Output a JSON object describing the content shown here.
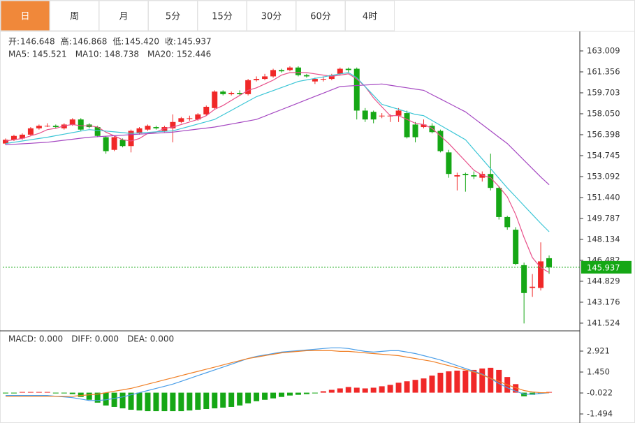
{
  "tabs": [
    "日",
    "周",
    "月",
    "5分",
    "15分",
    "30分",
    "60分",
    "4时"
  ],
  "chart_data": [
    {
      "type": "candlestick",
      "ylim": [
        140.97,
        164.55
      ],
      "yticks": [
        163.009,
        161.356,
        159.703,
        {
          "value": 158.05,
          "label": "158.050"
        },
        156.398,
        154.745,
        153.092,
        {
          "value": 151.44,
          "label": "151.440"
        },
        149.787,
        148.134,
        146.482,
        144.829,
        143.176,
        141.524
      ],
      "up_color": "#f02828",
      "down_color": "#15a715",
      "open": [
        155.7,
        156.0,
        156.1,
        156.4,
        156.9,
        157.1,
        157.1,
        156.9,
        157.2,
        157.6,
        157.2,
        157.0,
        156.2,
        155.2,
        156.0,
        155.5,
        156.5,
        156.8,
        157.0,
        156.7,
        156.9,
        157.4,
        157.7,
        157.6,
        158.0,
        158.5,
        159.8,
        159.6,
        159.7,
        159.6,
        160.7,
        160.8,
        161.0,
        161.5,
        161.5,
        161.7,
        161.1,
        160.6,
        160.8,
        160.8,
        161.2,
        161.6,
        161.6,
        158.3,
        158.2,
        157.9,
        157.9,
        157.9,
        158.1,
        157.2,
        157.0,
        157.1,
        156.7,
        155.0,
        153.1,
        153.3,
        153.2,
        153.0,
        153.3,
        152.2,
        149.9,
        148.9,
        146.1,
        144.3,
        144.3,
        146.648
      ],
      "high": [
        156.1,
        156.4,
        156.5,
        157.0,
        157.2,
        157.3,
        157.2,
        157.3,
        157.7,
        157.7,
        157.3,
        157.1,
        156.3,
        156.3,
        156.1,
        156.8,
        157.0,
        157.2,
        157.1,
        157.1,
        158.0,
        157.8,
        157.9,
        158.1,
        158.7,
        159.9,
        159.9,
        159.8,
        159.9,
        160.8,
        161.0,
        161.2,
        161.6,
        161.6,
        161.8,
        161.8,
        161.2,
        160.9,
        161.0,
        161.2,
        161.7,
        161.7,
        161.7,
        158.5,
        158.3,
        158.1,
        158.0,
        158.5,
        158.3,
        157.4,
        157.6,
        157.3,
        156.8,
        155.2,
        153.4,
        153.4,
        153.5,
        153.5,
        154.9,
        152.3,
        150.0,
        149.1,
        146.3,
        145.4,
        147.9,
        146.868
      ],
      "low": [
        155.6,
        155.9,
        156.0,
        156.3,
        156.8,
        157.0,
        156.9,
        156.8,
        157.1,
        156.7,
        156.9,
        156.2,
        154.9,
        155.1,
        155.4,
        155.0,
        156.4,
        156.7,
        156.8,
        156.6,
        155.8,
        157.3,
        157.5,
        157.5,
        157.9,
        158.4,
        159.5,
        159.5,
        159.5,
        159.5,
        160.6,
        160.7,
        160.9,
        161.3,
        161.4,
        161.0,
        160.9,
        160.4,
        160.6,
        160.7,
        161.1,
        161.3,
        157.6,
        157.4,
        157.3,
        157.7,
        157.4,
        157.4,
        156.1,
        155.8,
        156.9,
        156.5,
        155.0,
        153.0,
        152.0,
        151.9,
        152.9,
        152.7,
        152.0,
        149.7,
        148.9,
        146.1,
        141.5,
        143.6,
        144.1,
        145.42
      ],
      "close": [
        156.0,
        156.3,
        156.4,
        156.9,
        157.1,
        157.1,
        157.0,
        157.2,
        157.6,
        156.8,
        157.0,
        156.3,
        155.1,
        156.2,
        155.5,
        156.7,
        156.9,
        157.1,
        156.9,
        157.0,
        157.4,
        157.7,
        157.7,
        158.0,
        158.6,
        159.8,
        159.6,
        159.7,
        159.6,
        160.7,
        160.8,
        161.0,
        161.5,
        161.4,
        161.7,
        161.1,
        161.0,
        160.8,
        160.8,
        161.1,
        161.6,
        161.5,
        158.3,
        157.6,
        157.6,
        157.9,
        157.9,
        158.3,
        156.2,
        156.2,
        157.2,
        156.6,
        155.1,
        153.3,
        153.2,
        153.2,
        153.1,
        153.3,
        152.2,
        149.9,
        149.1,
        146.2,
        143.9,
        144.4,
        146.4,
        145.937
      ],
      "ohlc_labels": [
        {
          "label": "开:",
          "value": "146.648"
        },
        {
          "label": "高:",
          "value": "146.868"
        },
        {
          "label": "低:",
          "value": "145.420"
        },
        {
          "label": "收:",
          "value": "145.937"
        }
      ],
      "ma": [
        {
          "label": "MA5: 145.521",
          "color": "#e8508a",
          "values": [
            155.9,
            156.0,
            156.1,
            156.3,
            156.5,
            156.8,
            156.9,
            157.1,
            157.2,
            157.1,
            157.1,
            157.0,
            156.6,
            156.3,
            156.0,
            155.9,
            156.1,
            156.5,
            156.6,
            156.9,
            157.0,
            157.2,
            157.4,
            157.6,
            157.9,
            158.4,
            158.7,
            159.1,
            159.5,
            159.9,
            160.1,
            160.4,
            160.7,
            161.1,
            161.3,
            161.3,
            161.3,
            161.2,
            161.1,
            161.0,
            161.1,
            161.2,
            160.8,
            160.2,
            159.3,
            158.6,
            157.9,
            157.9,
            157.6,
            157.3,
            157.2,
            156.9,
            156.3,
            155.7,
            155.0,
            154.3,
            153.6,
            153.2,
            153.0,
            152.3,
            151.5,
            150.1,
            148.3,
            146.7,
            145.9,
            145.521
          ]
        },
        {
          "label": "MA10: 148.738",
          "color": "#3cc6d6",
          "values": [
            155.7,
            155.8,
            155.9,
            156.0,
            156.1,
            156.2,
            156.32,
            156.44,
            156.56,
            156.68,
            156.8,
            156.74,
            156.68,
            156.62,
            156.56,
            156.5,
            156.54,
            156.58,
            156.62,
            156.66,
            156.7,
            156.88,
            157.06,
            157.24,
            157.42,
            157.6,
            157.96,
            158.32,
            158.68,
            159.04,
            159.4,
            159.64,
            159.88,
            160.12,
            160.36,
            160.6,
            160.72,
            160.84,
            160.96,
            161.08,
            161.2,
            161.3,
            160.9,
            160.2,
            159.5,
            158.8,
            158.6,
            158.4,
            158.2,
            158.0,
            157.9,
            157.52,
            157.14,
            156.76,
            156.38,
            156.0,
            155.24,
            154.48,
            153.72,
            152.96,
            152.2,
            151.5,
            150.8,
            150.1,
            149.4,
            148.738
          ]
        },
        {
          "label": "MA20: 152.446",
          "color": "#a548c2",
          "values": [
            155.6,
            155.64,
            155.68,
            155.72,
            155.76,
            155.8,
            155.88,
            155.96,
            156.04,
            156.12,
            156.2,
            156.24,
            156.28,
            156.32,
            156.36,
            156.4,
            156.44,
            156.48,
            156.52,
            156.56,
            156.6,
            156.68,
            156.76,
            156.84,
            156.92,
            157.0,
            157.12,
            157.24,
            157.36,
            157.48,
            157.6,
            157.86,
            158.12,
            158.38,
            158.64,
            158.9,
            159.16,
            159.42,
            159.68,
            159.94,
            160.2,
            160.24,
            160.28,
            160.32,
            160.36,
            160.4,
            160.3,
            160.2,
            160.1,
            160.0,
            159.9,
            159.56,
            159.22,
            158.88,
            158.54,
            158.2,
            157.7,
            157.2,
            156.7,
            156.2,
            155.7,
            155.04,
            154.38,
            153.72,
            153.06,
            152.446
          ]
        }
      ],
      "last_price": 145.937,
      "last_price_color": "#15a715"
    },
    {
      "type": "macd",
      "ylim": [
        -2.13,
        4.245
      ],
      "yticks": [
        2.921,
        {
          "value": 1.45,
          "label": "1.450"
        },
        -0.022,
        -1.494
      ],
      "bars": {
        "label": "MACD: 0.000",
        "color": "#e0302f",
        "up_color": "#f02828",
        "down_color": "#15a715",
        "values": [
          -0.05,
          -0.05,
          0.05,
          0.05,
          0.05,
          0.05,
          -0.05,
          -0.05,
          -0.1,
          -0.3,
          -0.5,
          -0.7,
          -0.9,
          -1.0,
          -1.1,
          -1.2,
          -1.25,
          -1.3,
          -1.3,
          -1.3,
          -1.3,
          -1.3,
          -1.25,
          -1.2,
          -1.15,
          -1.1,
          -1.05,
          -1.0,
          -0.9,
          -0.75,
          -0.6,
          -0.5,
          -0.4,
          -0.3,
          -0.2,
          -0.15,
          -0.1,
          -0.05,
          0.1,
          0.2,
          0.3,
          0.4,
          0.35,
          0.3,
          0.35,
          0.45,
          0.55,
          0.7,
          0.8,
          0.9,
          1.0,
          1.2,
          1.4,
          1.5,
          1.55,
          1.55,
          1.6,
          1.7,
          1.75,
          1.6,
          1.1,
          0.6,
          -0.25,
          -0.15,
          -0.05,
          0.05
        ]
      },
      "lines": [
        {
          "label": "DIFF: 0.000",
          "color": "#4a9ee8",
          "values": [
            -0.2,
            -0.2,
            -0.2,
            -0.2,
            -0.2,
            -0.2,
            -0.25,
            -0.3,
            -0.35,
            -0.45,
            -0.55,
            -0.55,
            -0.5,
            -0.4,
            -0.3,
            -0.15,
            0.0,
            0.15,
            0.3,
            0.45,
            0.6,
            0.8,
            1.0,
            1.2,
            1.4,
            1.6,
            1.8,
            2.0,
            2.2,
            2.4,
            2.55,
            2.65,
            2.75,
            2.85,
            2.9,
            2.95,
            3.0,
            3.05,
            3.1,
            3.15,
            3.15,
            3.1,
            3.0,
            2.9,
            2.85,
            2.9,
            2.95,
            2.95,
            2.85,
            2.75,
            2.6,
            2.45,
            2.3,
            2.1,
            1.9,
            1.7,
            1.5,
            1.3,
            1.0,
            0.65,
            0.35,
            0.1,
            -0.1,
            -0.1,
            -0.05,
            0.0
          ]
        },
        {
          "label": "DEA: 0.000",
          "color": "#f07f25",
          "values": [
            -0.25,
            -0.25,
            -0.25,
            -0.25,
            -0.25,
            -0.25,
            -0.25,
            -0.25,
            -0.25,
            -0.2,
            -0.15,
            -0.1,
            0.0,
            0.1,
            0.2,
            0.3,
            0.45,
            0.6,
            0.75,
            0.9,
            1.05,
            1.2,
            1.35,
            1.5,
            1.65,
            1.8,
            1.95,
            2.1,
            2.25,
            2.4,
            2.5,
            2.6,
            2.7,
            2.8,
            2.85,
            2.9,
            2.95,
            2.95,
            2.95,
            2.95,
            2.9,
            2.9,
            2.85,
            2.8,
            2.75,
            2.7,
            2.65,
            2.6,
            2.5,
            2.4,
            2.3,
            2.2,
            2.05,
            1.9,
            1.75,
            1.6,
            1.45,
            1.25,
            1.0,
            0.8,
            0.55,
            0.35,
            0.15,
            0.05,
            0.0,
            0.0
          ]
        }
      ]
    }
  ]
}
